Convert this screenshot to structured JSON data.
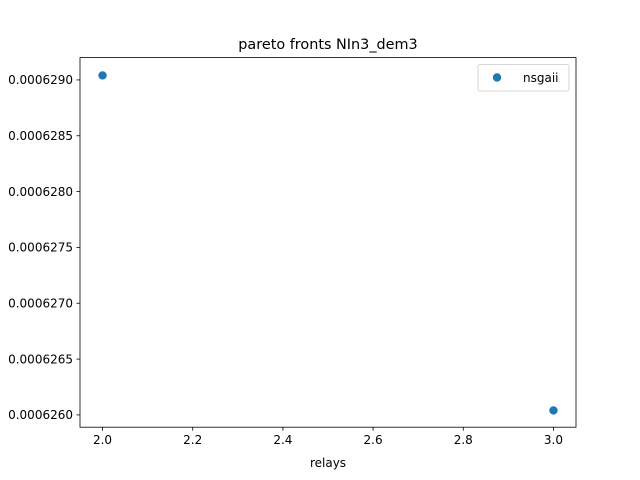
{
  "chart_data": {
    "type": "scatter",
    "title": "pareto fronts NIn3_dem3",
    "xlabel": "relays",
    "ylabel": "",
    "xlim": [
      1.95,
      3.05
    ],
    "ylim": [
      0.00062589,
      0.0006292
    ],
    "x_ticks": [
      2.0,
      2.2,
      2.4,
      2.6,
      2.8,
      3.0
    ],
    "x_tick_labels": [
      "2.0",
      "2.2",
      "2.4",
      "2.6",
      "2.8",
      "3.0"
    ],
    "y_ticks": [
      0.000626,
      0.0006265,
      0.000627,
      0.0006275,
      0.000628,
      0.0006285,
      0.000629
    ],
    "y_tick_labels": [
      "0.0006260",
      "0.0006265",
      "0.0006270",
      "0.0006275",
      "0.0006280",
      "0.0006285",
      "0.0006290"
    ],
    "grid": false,
    "legend_position": "top-right",
    "series": [
      {
        "name": "nsgaii",
        "color": "#1f77b4",
        "points": [
          {
            "x": 2.0,
            "y": 0.00062904
          },
          {
            "x": 3.0,
            "y": 0.00062604
          }
        ]
      }
    ]
  }
}
